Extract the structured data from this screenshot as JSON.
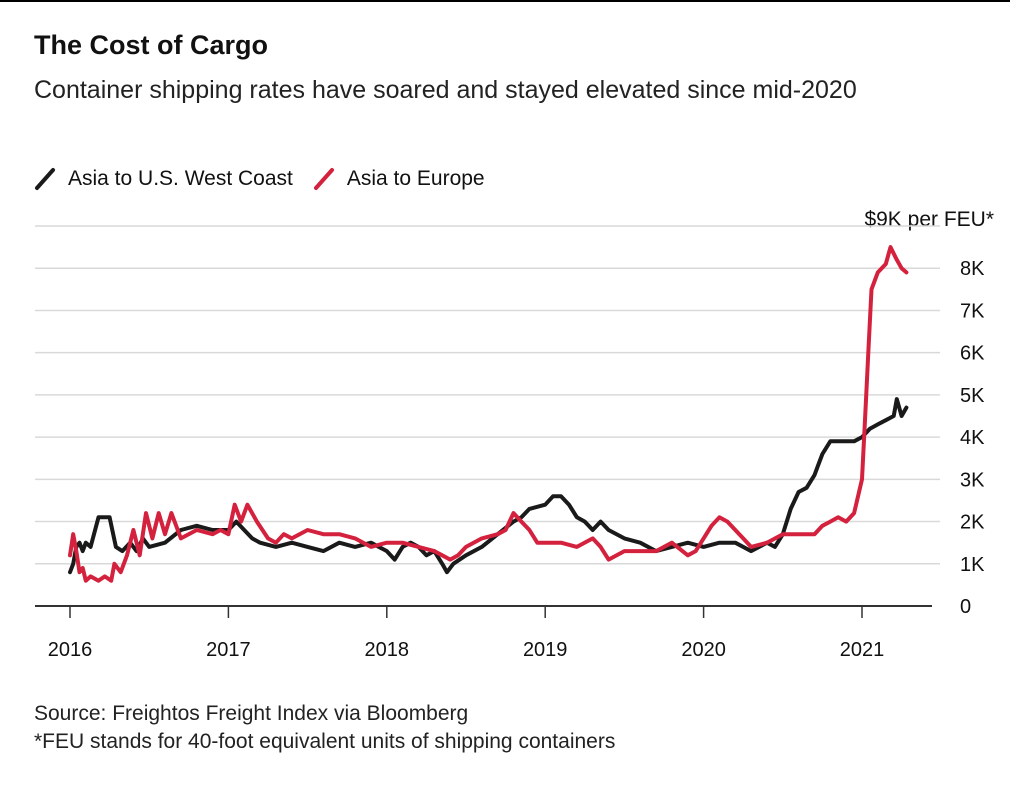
{
  "chart_data": {
    "type": "line",
    "title": "The Cost of Cargo",
    "subtitle": "Container shipping rates have soared and stayed elevated since mid-2020",
    "unit_label": "$9K per FEU*",
    "x_ticks": [
      "2016",
      "2017",
      "2018",
      "2019",
      "2020",
      "2021"
    ],
    "y_ticks": [
      {
        "value": 0,
        "label": "0"
      },
      {
        "value": 1000,
        "label": "1K"
      },
      {
        "value": 2000,
        "label": "2K"
      },
      {
        "value": 3000,
        "label": "3K"
      },
      {
        "value": 4000,
        "label": "4K"
      },
      {
        "value": 5000,
        "label": "5K"
      },
      {
        "value": 6000,
        "label": "6K"
      },
      {
        "value": 7000,
        "label": "7K"
      },
      {
        "value": 8000,
        "label": "8K"
      },
      {
        "value": 9000,
        "label": ""
      }
    ],
    "xlim": [
      2016.0,
      2021.3
    ],
    "ylim": [
      0,
      9000
    ],
    "grid": true,
    "legend_position": "top-left",
    "series": [
      {
        "name": "Asia to U.S. West Coast",
        "color": "#1a1a1a",
        "points": [
          [
            2016.0,
            800
          ],
          [
            2016.02,
            1000
          ],
          [
            2016.04,
            1400
          ],
          [
            2016.06,
            1500
          ],
          [
            2016.08,
            1300
          ],
          [
            2016.1,
            1500
          ],
          [
            2016.13,
            1400
          ],
          [
            2016.18,
            2100
          ],
          [
            2016.25,
            2100
          ],
          [
            2016.29,
            1400
          ],
          [
            2016.33,
            1300
          ],
          [
            2016.38,
            1500
          ],
          [
            2016.42,
            1300
          ],
          [
            2016.46,
            1600
          ],
          [
            2016.5,
            1400
          ],
          [
            2016.6,
            1500
          ],
          [
            2016.7,
            1800
          ],
          [
            2016.8,
            1900
          ],
          [
            2016.9,
            1800
          ],
          [
            2017.0,
            1800
          ],
          [
            2017.05,
            2000
          ],
          [
            2017.1,
            1800
          ],
          [
            2017.15,
            1600
          ],
          [
            2017.2,
            1500
          ],
          [
            2017.3,
            1400
          ],
          [
            2017.4,
            1500
          ],
          [
            2017.5,
            1400
          ],
          [
            2017.6,
            1300
          ],
          [
            2017.7,
            1500
          ],
          [
            2017.8,
            1400
          ],
          [
            2017.9,
            1500
          ],
          [
            2018.0,
            1300
          ],
          [
            2018.05,
            1100
          ],
          [
            2018.1,
            1400
          ],
          [
            2018.15,
            1500
          ],
          [
            2018.2,
            1400
          ],
          [
            2018.25,
            1200
          ],
          [
            2018.3,
            1300
          ],
          [
            2018.35,
            1000
          ],
          [
            2018.38,
            800
          ],
          [
            2018.42,
            1000
          ],
          [
            2018.5,
            1200
          ],
          [
            2018.6,
            1400
          ],
          [
            2018.7,
            1700
          ],
          [
            2018.8,
            2000
          ],
          [
            2018.85,
            2100
          ],
          [
            2018.9,
            2300
          ],
          [
            2019.0,
            2400
          ],
          [
            2019.05,
            2600
          ],
          [
            2019.1,
            2600
          ],
          [
            2019.15,
            2400
          ],
          [
            2019.2,
            2100
          ],
          [
            2019.25,
            2000
          ],
          [
            2019.3,
            1800
          ],
          [
            2019.35,
            2000
          ],
          [
            2019.4,
            1800
          ],
          [
            2019.5,
            1600
          ],
          [
            2019.6,
            1500
          ],
          [
            2019.7,
            1300
          ],
          [
            2019.8,
            1400
          ],
          [
            2019.9,
            1500
          ],
          [
            2020.0,
            1400
          ],
          [
            2020.1,
            1500
          ],
          [
            2020.2,
            1500
          ],
          [
            2020.3,
            1300
          ],
          [
            2020.4,
            1500
          ],
          [
            2020.45,
            1400
          ],
          [
            2020.5,
            1700
          ],
          [
            2020.55,
            2300
          ],
          [
            2020.6,
            2700
          ],
          [
            2020.65,
            2800
          ],
          [
            2020.7,
            3100
          ],
          [
            2020.72,
            3300
          ],
          [
            2020.75,
            3600
          ],
          [
            2020.8,
            3900
          ],
          [
            2020.85,
            3900
          ],
          [
            2020.9,
            3900
          ],
          [
            2020.95,
            3900
          ],
          [
            2021.0,
            4000
          ],
          [
            2021.05,
            4200
          ],
          [
            2021.1,
            4300
          ],
          [
            2021.15,
            4400
          ],
          [
            2021.2,
            4500
          ],
          [
            2021.22,
            4900
          ],
          [
            2021.25,
            4500
          ],
          [
            2021.28,
            4700
          ]
        ]
      },
      {
        "name": "Asia to Europe",
        "color": "#d4213d",
        "points": [
          [
            2016.0,
            1200
          ],
          [
            2016.02,
            1700
          ],
          [
            2016.04,
            1300
          ],
          [
            2016.06,
            800
          ],
          [
            2016.08,
            900
          ],
          [
            2016.1,
            600
          ],
          [
            2016.13,
            700
          ],
          [
            2016.18,
            600
          ],
          [
            2016.22,
            700
          ],
          [
            2016.26,
            600
          ],
          [
            2016.28,
            1000
          ],
          [
            2016.32,
            800
          ],
          [
            2016.36,
            1200
          ],
          [
            2016.4,
            1800
          ],
          [
            2016.44,
            1200
          ],
          [
            2016.48,
            2200
          ],
          [
            2016.52,
            1600
          ],
          [
            2016.56,
            2200
          ],
          [
            2016.6,
            1700
          ],
          [
            2016.64,
            2200
          ],
          [
            2016.7,
            1600
          ],
          [
            2016.8,
            1800
          ],
          [
            2016.9,
            1700
          ],
          [
            2016.95,
            1800
          ],
          [
            2017.0,
            1700
          ],
          [
            2017.04,
            2400
          ],
          [
            2017.08,
            2000
          ],
          [
            2017.12,
            2400
          ],
          [
            2017.18,
            2000
          ],
          [
            2017.25,
            1600
          ],
          [
            2017.3,
            1500
          ],
          [
            2017.35,
            1700
          ],
          [
            2017.4,
            1600
          ],
          [
            2017.5,
            1800
          ],
          [
            2017.6,
            1700
          ],
          [
            2017.7,
            1700
          ],
          [
            2017.8,
            1600
          ],
          [
            2017.9,
            1400
          ],
          [
            2018.0,
            1500
          ],
          [
            2018.1,
            1500
          ],
          [
            2018.2,
            1400
          ],
          [
            2018.3,
            1300
          ],
          [
            2018.35,
            1200
          ],
          [
            2018.4,
            1100
          ],
          [
            2018.45,
            1200
          ],
          [
            2018.5,
            1400
          ],
          [
            2018.6,
            1600
          ],
          [
            2018.7,
            1700
          ],
          [
            2018.75,
            1800
          ],
          [
            2018.8,
            2200
          ],
          [
            2018.85,
            2000
          ],
          [
            2018.9,
            1800
          ],
          [
            2018.95,
            1500
          ],
          [
            2019.0,
            1500
          ],
          [
            2019.1,
            1500
          ],
          [
            2019.2,
            1400
          ],
          [
            2019.3,
            1600
          ],
          [
            2019.35,
            1400
          ],
          [
            2019.4,
            1100
          ],
          [
            2019.5,
            1300
          ],
          [
            2019.6,
            1300
          ],
          [
            2019.7,
            1300
          ],
          [
            2019.8,
            1500
          ],
          [
            2019.9,
            1200
          ],
          [
            2019.95,
            1300
          ],
          [
            2020.0,
            1600
          ],
          [
            2020.05,
            1900
          ],
          [
            2020.1,
            2100
          ],
          [
            2020.15,
            2000
          ],
          [
            2020.2,
            1800
          ],
          [
            2020.25,
            1600
          ],
          [
            2020.3,
            1400
          ],
          [
            2020.4,
            1500
          ],
          [
            2020.5,
            1700
          ],
          [
            2020.6,
            1700
          ],
          [
            2020.7,
            1700
          ],
          [
            2020.75,
            1900
          ],
          [
            2020.8,
            2000
          ],
          [
            2020.85,
            2100
          ],
          [
            2020.9,
            2000
          ],
          [
            2020.95,
            2200
          ],
          [
            2021.0,
            3000
          ],
          [
            2021.02,
            4500
          ],
          [
            2021.04,
            6000
          ],
          [
            2021.06,
            7500
          ],
          [
            2021.1,
            7900
          ],
          [
            2021.15,
            8100
          ],
          [
            2021.18,
            8500
          ],
          [
            2021.22,
            8200
          ],
          [
            2021.25,
            8000
          ],
          [
            2021.28,
            7900
          ]
        ]
      }
    ]
  },
  "source_note": "Source: Freightos Freight Index via Bloomberg",
  "footnote": "*FEU stands for 40-foot equivalent units of shipping containers"
}
